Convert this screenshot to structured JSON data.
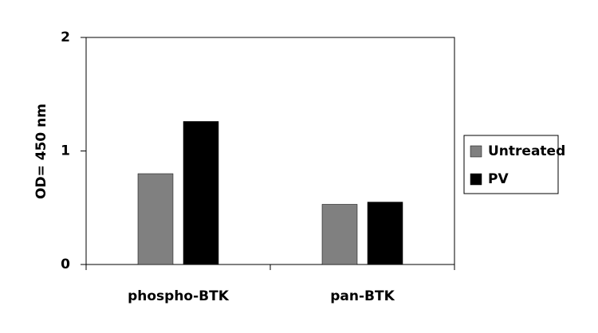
{
  "chart_data": {
    "type": "bar",
    "categories": [
      "phospho-BTK",
      "pan-BTK"
    ],
    "series": [
      {
        "name": "Untreated",
        "color": "#808080",
        "values": [
          0.8,
          0.53
        ]
      },
      {
        "name": "PV",
        "color": "#000000",
        "values": [
          1.26,
          0.55
        ]
      }
    ],
    "y_label": "OD= 450 nm",
    "ylim": [
      0,
      2
    ],
    "yticks": [
      0,
      1,
      2
    ],
    "grid": false,
    "legend": "right"
  }
}
